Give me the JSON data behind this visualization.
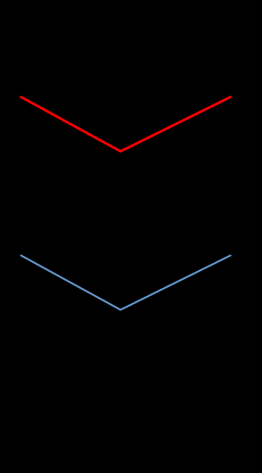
{
  "background_color": "#000000",
  "fig_width": 2.94,
  "fig_height": 5.29,
  "dpi": 100,
  "top_graph": {
    "color": "#ff0000",
    "linewidth": 2.0,
    "x": [
      0.08,
      0.46,
      0.88
    ],
    "y": [
      0.795,
      0.68,
      0.795
    ]
  },
  "bottom_graph": {
    "color": "#6699cc",
    "linewidth": 1.5,
    "x": [
      0.08,
      0.46,
      0.88
    ],
    "y": [
      0.46,
      0.345,
      0.46
    ]
  }
}
